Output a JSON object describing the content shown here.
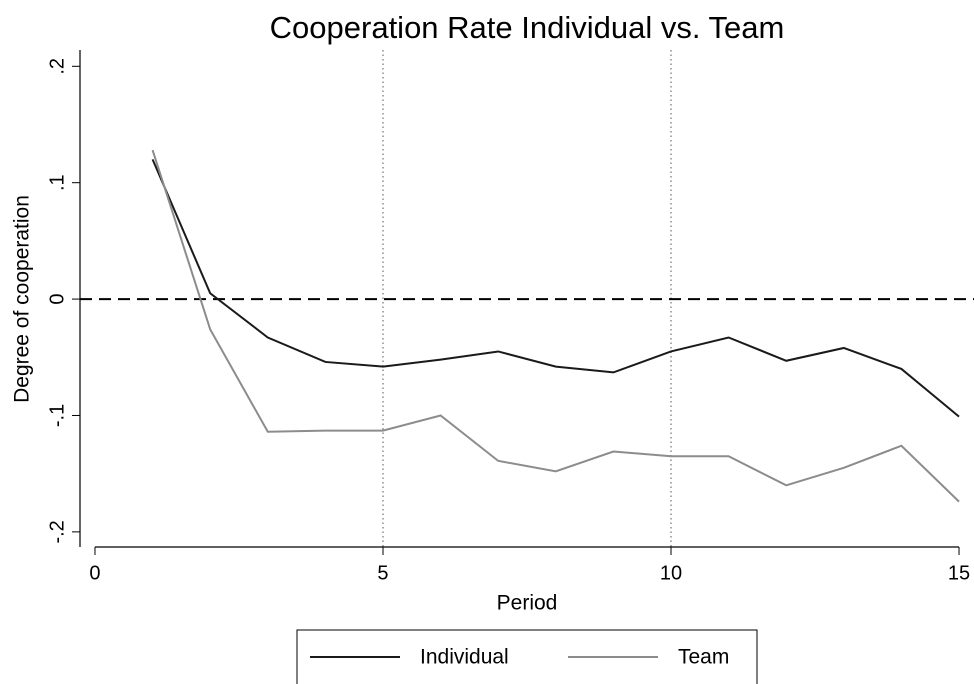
{
  "chart_data": {
    "type": "line",
    "title": "Cooperation Rate Individual vs. Team",
    "x_label": "Period",
    "y_label": "Degree of cooperation",
    "x": [
      1,
      2,
      3,
      4,
      5,
      6,
      7,
      8,
      9,
      10,
      11,
      12,
      13,
      14,
      15
    ],
    "series": [
      {
        "name": "Individual",
        "color": "#1a1a1a",
        "values": [
          0.12,
          0.005,
          -0.033,
          -0.054,
          -0.058,
          -0.052,
          -0.045,
          -0.058,
          -0.063,
          -0.045,
          -0.033,
          -0.053,
          -0.042,
          -0.06,
          -0.101
        ]
      },
      {
        "name": "Team",
        "color": "#8c8c8c",
        "values": [
          0.128,
          -0.026,
          -0.114,
          -0.113,
          -0.113,
          -0.1,
          -0.139,
          -0.148,
          -0.131,
          -0.135,
          -0.135,
          -0.16,
          -0.145,
          -0.126,
          -0.174
        ]
      }
    ],
    "xlim": [
      -0.26,
      15.26
    ],
    "ylim": [
      -0.213,
      0.214
    ],
    "xticks": [
      0,
      5,
      10,
      15
    ],
    "yticks": [
      {
        "value": -0.2,
        "label": "-.2"
      },
      {
        "value": -0.1,
        "label": "-.1"
      },
      0,
      {
        "value": 0.1,
        "label": ".1"
      },
      {
        "value": 0.2,
        "label": ".2"
      }
    ],
    "hline": 0,
    "vlines": [
      5,
      10
    ],
    "legend": "bottom"
  }
}
